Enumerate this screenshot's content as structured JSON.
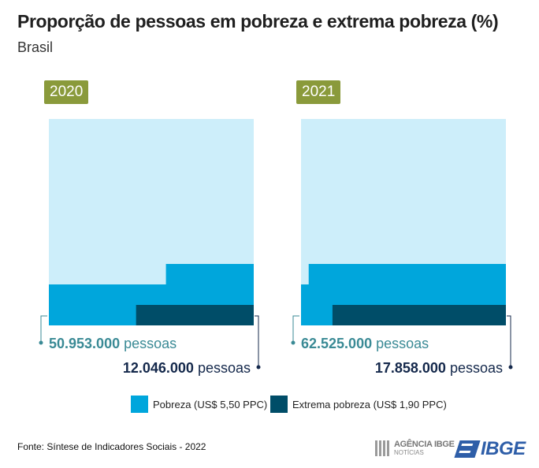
{
  "title": "Proporção de pessoas em pobreza e extrema pobreza (%)",
  "subtitle": "Brasil",
  "colors": {
    "total": "#cdeefa",
    "pobreza": "#00a6dc",
    "extrema": "#004d68",
    "badge": "#8a9a3b",
    "label_teal": "#3a8a95",
    "label_dark": "#14284b"
  },
  "chart_data": {
    "type": "area",
    "title": "Proporção de pessoas em pobreza e extrema pobreza (%)",
    "subtitle": "Brasil",
    "panels": [
      {
        "year": "2020",
        "pobreza_pct": 24.1,
        "extrema_pct": 5.7,
        "pobreza_label_value": "50.953.000",
        "extrema_label_value": "12.046.000",
        "unit": "pessoas"
      },
      {
        "year": "2021",
        "pobreza_pct": 29.4,
        "extrema_pct": 8.4,
        "pobreza_label_value": "62.525.000",
        "extrema_label_value": "17.858.000",
        "unit": "pessoas"
      }
    ],
    "legend": [
      {
        "name": "Pobreza (US$ 5,50 PPC)",
        "color": "#00a6dc"
      },
      {
        "name": "Extrema pobreza (US$ 1,90 PPC)",
        "color": "#004d68"
      }
    ],
    "legend_position": "bottom"
  },
  "source": "Fonte: Síntese de Indicadores Sociais - 2022",
  "logos": {
    "agencia_line1": "AGÊNCIA IBGE",
    "agencia_line2": "NOTÍCIAS",
    "ibge": "IBGE",
    "agencia_icon": "barcode-grid-icon",
    "ibge_icon": "ibge-flag-icon"
  }
}
